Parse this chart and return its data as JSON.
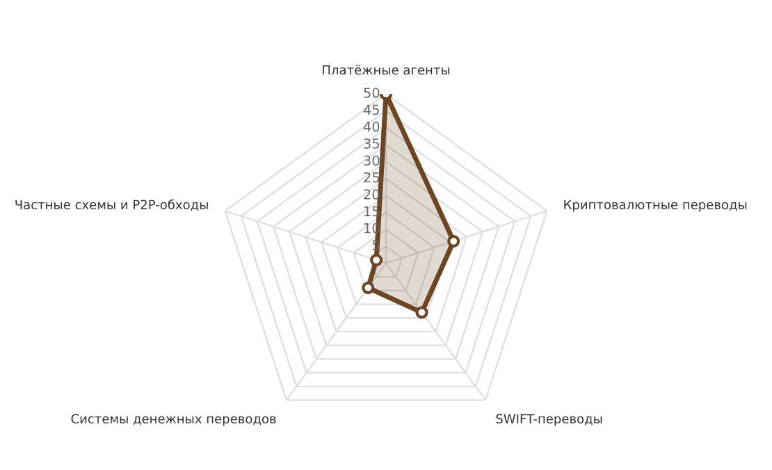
{
  "chart_data": {
    "type": "radar",
    "categories": [
      "Платёжные агенты",
      "Криптовалютные переводы",
      "SWIFT-переводы",
      "Системы денежных переводов",
      "Частные схемы и P2P-обходы"
    ],
    "series": [
      {
        "color": "#6b4524",
        "values": [
          50,
          21,
          18,
          9,
          3
        ]
      }
    ],
    "ylim": [
      0,
      50
    ],
    "yticks": [
      5,
      10,
      15,
      20,
      25,
      30,
      35,
      40,
      45,
      50
    ],
    "marker": "circle",
    "grid": true
  }
}
